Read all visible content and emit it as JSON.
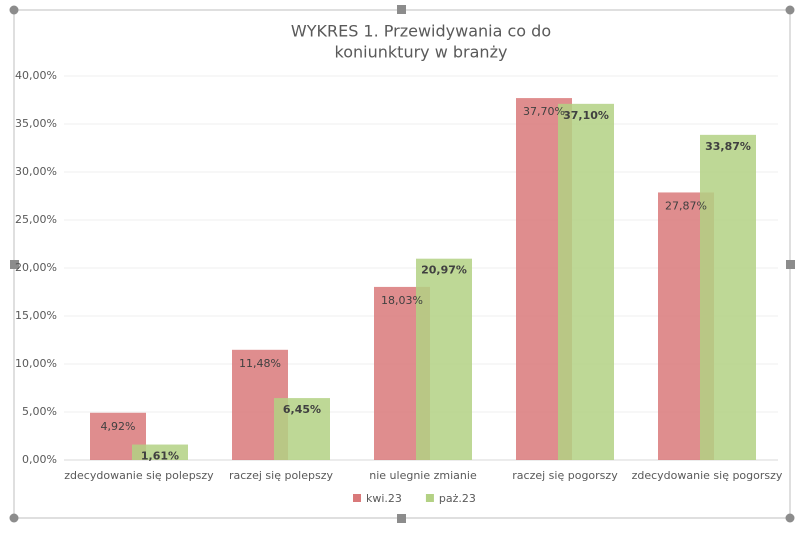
{
  "chart_data": {
    "type": "bar",
    "title": [
      "WYKRES 1. Przewidywania co do",
      "koniunktury w branży"
    ],
    "categories": [
      "zdecydowanie się polepszy",
      "raczej się polepszy",
      "nie ulegnie zmianie",
      "raczej się pogorszy",
      "zdecydowanie się pogorszy"
    ],
    "series": [
      {
        "name": "kwi.23",
        "color": "#d9797a",
        "values": [
          4.92,
          11.48,
          18.03,
          37.7,
          27.87
        ],
        "value_labels": [
          "4,92%",
          "11,48%",
          "18,03%",
          "37,70%",
          "27,87%"
        ]
      },
      {
        "name": "paż.23",
        "color": "#b3d184",
        "values": [
          1.61,
          6.45,
          20.97,
          37.1,
          33.87
        ],
        "value_labels": [
          "1,61%",
          "6,45%",
          "20,97%",
          "37,10%",
          "33,87%"
        ]
      }
    ],
    "ylim": [
      0,
      40
    ],
    "yticks": [
      {
        "value": 0,
        "label": "0,00%"
      },
      {
        "value": 5,
        "label": "5,00%"
      },
      {
        "value": 10,
        "label": "10,00%"
      },
      {
        "value": 15,
        "label": "15,00%"
      },
      {
        "value": 20,
        "label": "20,00%"
      },
      {
        "value": 25,
        "label": "25,00%"
      },
      {
        "value": 30,
        "label": "30,00%"
      },
      {
        "value": 35,
        "label": "35,00%"
      },
      {
        "value": 40,
        "label": "40,00%"
      }
    ],
    "grid": true,
    "legend": "bottom"
  }
}
